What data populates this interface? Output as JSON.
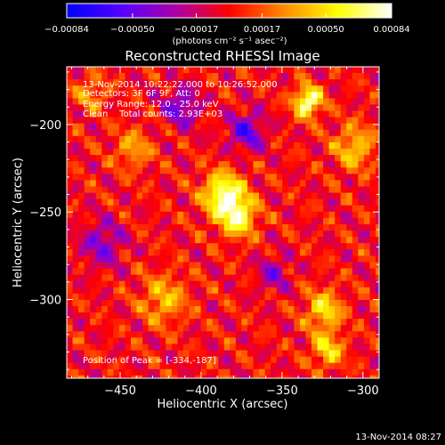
{
  "chart_data": {
    "type": "heatmap",
    "title": "Reconstructed RHESSI Image",
    "xlabel": "Heliocentric X (arcsec)",
    "ylabel": "Heliocentric Y (arcsec)",
    "xlim": [
      -483,
      -290
    ],
    "ylim": [
      -345,
      -167
    ],
    "x_ticks": [
      -450,
      -400,
      -350,
      -300
    ],
    "x_tick_labels": [
      "−450",
      "−400",
      "−350",
      "−300"
    ],
    "y_ticks": [
      -200,
      -250,
      -300
    ],
    "y_tick_labels": [
      "−200",
      "−250",
      "−300"
    ],
    "colorbar": {
      "min": -0.00084,
      "max": 0.00084,
      "ticks": [
        -0.00084,
        -0.0005,
        -0.00017,
        0.00017,
        0.0005,
        0.00084
      ],
      "tick_labels": [
        "−0.00084",
        "−0.00050",
        "−0.00017",
        "0.00017",
        "0.00050",
        "0.00084"
      ],
      "units_label": "(photons cm⁻² s⁻¹ asec⁻²)",
      "colors": [
        "#0000ff",
        "#5500ff",
        "#aa00aa",
        "#ff0000",
        "#ff8800",
        "#ffff00",
        "#ffffff"
      ]
    },
    "peak": {
      "x": -334,
      "y": -187,
      "value": 0.00084
    },
    "blobs": [
      {
        "x": -386,
        "y": -240,
        "sigma": 9,
        "amp": 0.00075
      },
      {
        "x": -377,
        "y": -253,
        "sigma": 8,
        "amp": 0.00062
      },
      {
        "x": -334,
        "y": -187,
        "sigma": 6,
        "amp": 0.00084
      },
      {
        "x": -305,
        "y": -213,
        "sigma": 9,
        "amp": 0.00045
      },
      {
        "x": -324,
        "y": -306,
        "sigma": 8,
        "amp": 0.00052
      },
      {
        "x": -322,
        "y": -329,
        "sigma": 7,
        "amp": 0.0005
      },
      {
        "x": -442,
        "y": -214,
        "sigma": 8,
        "amp": 0.00035
      },
      {
        "x": -423,
        "y": -300,
        "sigma": 10,
        "amp": 0.0004
      },
      {
        "x": -468,
        "y": -182,
        "sigma": 7,
        "amp": 0.00032
      },
      {
        "x": -412,
        "y": -190,
        "sigma": 8,
        "amp": -0.00045
      },
      {
        "x": -372,
        "y": -204,
        "sigma": 8,
        "amp": -0.0005
      },
      {
        "x": -461,
        "y": -268,
        "sigma": 9,
        "amp": -0.0004
      },
      {
        "x": -355,
        "y": -285,
        "sigma": 7,
        "amp": -0.00035
      }
    ]
  },
  "annotations": {
    "line1": "13-Nov-2014 10:22:22.000 to 10:26:52.000",
    "line2": "Detectors: 3F 6F 9F, Att: 0",
    "line3": "Energy Range: 12.0 - 25.0 keV",
    "line4": "Clean    Total counts: 2.93E+03",
    "peak_label": "Position of Peak = [-334,-187]"
  },
  "footer": {
    "timestamp": "13-Nov-2014 08:27"
  }
}
